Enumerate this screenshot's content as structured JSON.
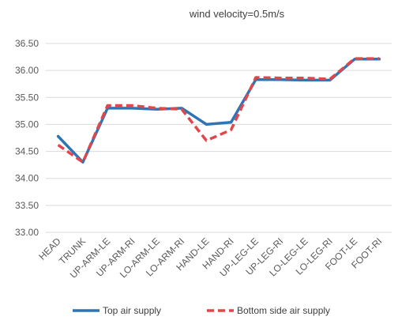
{
  "chart_data": {
    "type": "line",
    "title": "wind velocity=0.5m/s",
    "xlabel": "",
    "ylabel": "",
    "categories": [
      "HEAD",
      "TRUNK",
      "UP-ARM-LE",
      "UP-ARM-RI",
      "LO-ARM-LE",
      "LO-ARM-RI",
      "HAND-LE",
      "HAND-RI",
      "UP-LEG-LE",
      "UP-LEG-RI",
      "LO-LEG-LE",
      "LO-LEG-RI",
      "FOOT-LE",
      "FOOT-RI"
    ],
    "ylim": [
      33.0,
      36.5
    ],
    "yticks": [
      "33.00",
      "33.50",
      "34.00",
      "34.50",
      "35.00",
      "35.50",
      "36.00",
      "36.50"
    ],
    "grid": true,
    "legend_position": "bottom",
    "series": [
      {
        "name": "Top air supply",
        "color": "#2e75b6",
        "style": "solid",
        "values": [
          34.78,
          34.3,
          35.3,
          35.3,
          35.28,
          35.3,
          35.0,
          35.04,
          35.83,
          35.83,
          35.82,
          35.82,
          36.21,
          36.21
        ]
      },
      {
        "name": "Bottom side air supply",
        "color": "#e0474c",
        "style": "dashed",
        "values": [
          34.62,
          34.3,
          35.35,
          35.35,
          35.3,
          35.28,
          34.7,
          34.9,
          35.87,
          35.86,
          35.86,
          35.84,
          36.22,
          36.22
        ]
      }
    ]
  }
}
